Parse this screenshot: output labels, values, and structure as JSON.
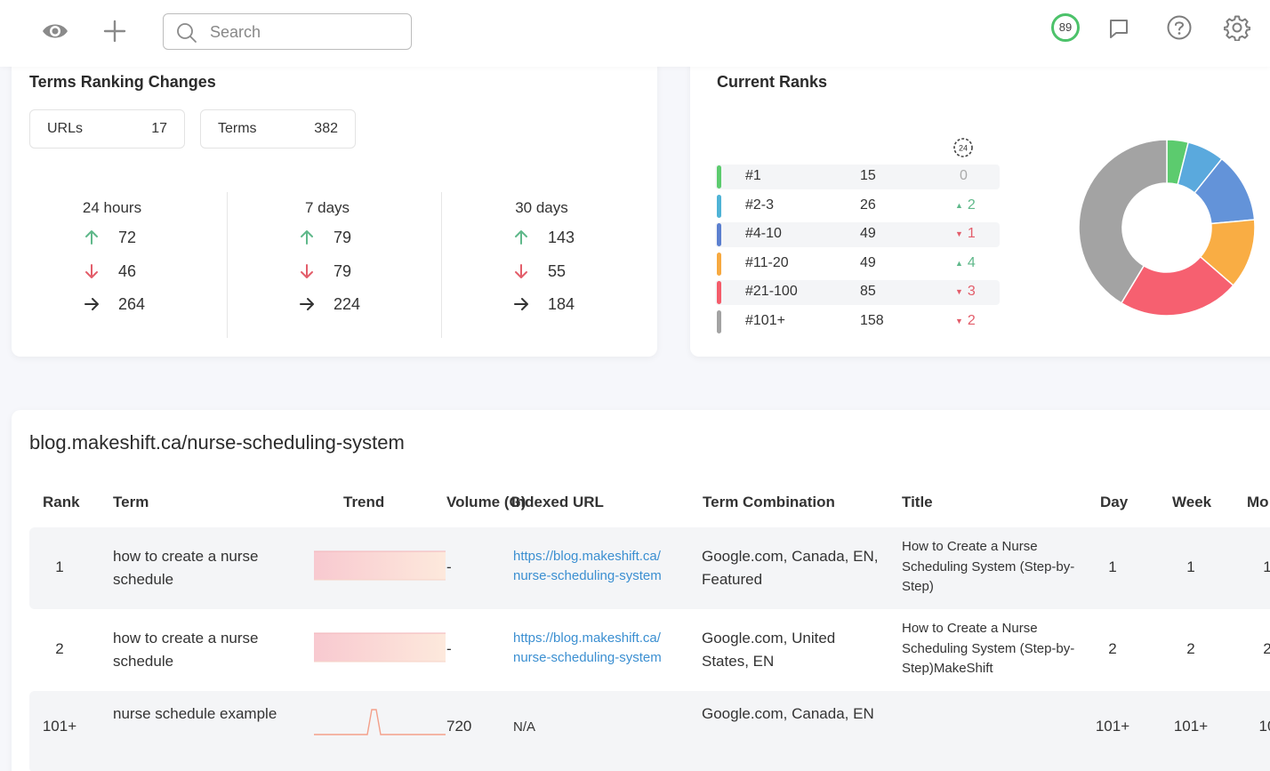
{
  "topbar": {
    "search_placeholder": "Search",
    "score": "89"
  },
  "changes": {
    "title": "Terms Ranking Changes",
    "pills": [
      {
        "label": "URLs",
        "value": "17"
      },
      {
        "label": "Terms",
        "value": "382"
      }
    ],
    "periods": [
      {
        "label": "24 hours",
        "up": "72",
        "down": "46",
        "same": "264"
      },
      {
        "label": "7 days",
        "up": "79",
        "down": "79",
        "same": "224"
      },
      {
        "label": "30 days",
        "up": "143",
        "down": "55",
        "same": "184"
      }
    ],
    "colors": {
      "up": "#5fb88a",
      "down": "#e35d6a",
      "same": "#333333"
    }
  },
  "current_ranks": {
    "title": "Current Ranks",
    "clock_label": "24",
    "rows": [
      {
        "label": "#1",
        "count": "15",
        "delta": "0",
        "direction": "none",
        "color": "#5ccb6e"
      },
      {
        "label": "#2-3",
        "count": "26",
        "delta": "2",
        "direction": "up",
        "color": "#4fb3d6"
      },
      {
        "label": "#4-10",
        "count": "49",
        "delta": "1",
        "direction": "down",
        "color": "#5b7fcf"
      },
      {
        "label": "#11-20",
        "count": "49",
        "delta": "4",
        "direction": "up",
        "color": "#f7a940"
      },
      {
        "label": "#21-100",
        "count": "85",
        "delta": "3",
        "direction": "down",
        "color": "#f45c6a"
      },
      {
        "label": "#101+",
        "count": "158",
        "delta": "2",
        "direction": "down",
        "color": "#a3a3a3"
      }
    ]
  },
  "chart_data": {
    "type": "pie",
    "categories": [
      "#1",
      "#2-3",
      "#4-10",
      "#11-20",
      "#21-100",
      "#101+"
    ],
    "values": [
      15,
      26,
      49,
      49,
      85,
      158
    ],
    "colors": [
      "#5ccb6e",
      "#5aa9dd",
      "#6393d9",
      "#f9ad44",
      "#f66070",
      "#a3a3a3"
    ],
    "donut": true
  },
  "table": {
    "url": "blog.makeshift.ca/nurse-scheduling-system",
    "headers": [
      "Rank",
      "Term",
      "Trend",
      "Volume (G)",
      "Indexed URL",
      "Term Combination",
      "Title",
      "Day",
      "Week",
      "Mo"
    ],
    "rows": [
      {
        "rank": "1",
        "term": "how to create a nurse schedule",
        "volume": "-",
        "url_line1": "https://blog.makeshift.ca/",
        "url_line2": "nurse-scheduling-system",
        "combination": "Google.com, Canada, EN, Featured",
        "title": "How to Create a Nurse Scheduling System (Step-by-Step)",
        "day": "1",
        "week": "1",
        "month": "1"
      },
      {
        "rank": "2",
        "term": "how to create a nurse schedule",
        "volume": "-",
        "url_line1": "https://blog.makeshift.ca/",
        "url_line2": "nurse-scheduling-system",
        "combination": "Google.com, United States, EN",
        "title": "How to Create a Nurse Scheduling System (Step-by-Step)MakeShift",
        "day": "2",
        "week": "2",
        "month": "2"
      },
      {
        "rank": "101+",
        "term": "nurse schedule example",
        "volume": "720",
        "url_na": "N/A",
        "combination": "Google.com, Canada, EN",
        "title": "",
        "day": "101+",
        "week": "101+",
        "month": "10"
      }
    ]
  }
}
